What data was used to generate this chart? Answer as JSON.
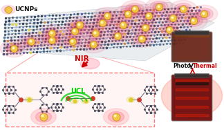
{
  "bg_color": "#ffffff",
  "ucnp_label": "UCNPs",
  "nir_label": "NIR",
  "ucl_label": "UCL",
  "photo_label": "Photo",
  "thermal_label": "Thermal",
  "ucnp_color": "#f5c842",
  "ucnp_glow": "#e8455a",
  "nir_color": "#cc0000",
  "ucl_color": "#00cc00",
  "thermal_arrow_color": "#cc0000",
  "zoom_box_color": "#ff7777",
  "zoom_box_bg": "#fff5f5",
  "sheet_dark": "#3a3a5a",
  "sheet_mid": "#6688aa",
  "sheet_light": "#aabbcc"
}
